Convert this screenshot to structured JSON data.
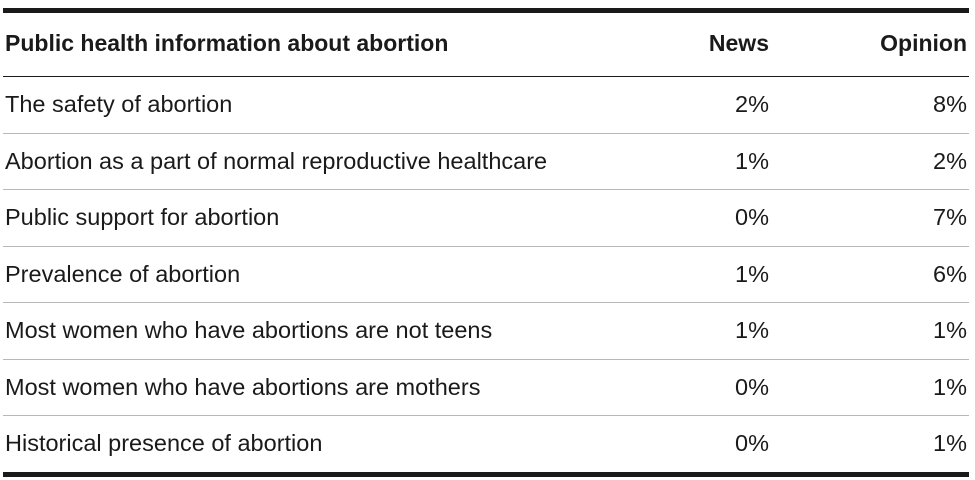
{
  "table": {
    "headers": {
      "topic": "Public health information about abortion",
      "news": "News",
      "opinion": "Opinion"
    },
    "rows": [
      {
        "topic": "The safety of abortion",
        "news": "2%",
        "opinion": "8%"
      },
      {
        "topic": "Abortion as a part of normal reproductive healthcare",
        "news": "1%",
        "opinion": "2%"
      },
      {
        "topic": "Public support for abortion",
        "news": "0%",
        "opinion": "7%"
      },
      {
        "topic": "Prevalence of abortion",
        "news": "1%",
        "opinion": "6%"
      },
      {
        "topic": "Most women who have abortions are not teens",
        "news": "1%",
        "opinion": "1%"
      },
      {
        "topic": "Most women who have abortions are mothers",
        "news": "0%",
        "opinion": "1%"
      },
      {
        "topic": "Historical presence of abortion",
        "news": "0%",
        "opinion": "1%"
      }
    ]
  },
  "colors": {
    "text": "#1a1a1a",
    "rule": "#1a1a1a",
    "row_divider": "#b8b8b8"
  }
}
